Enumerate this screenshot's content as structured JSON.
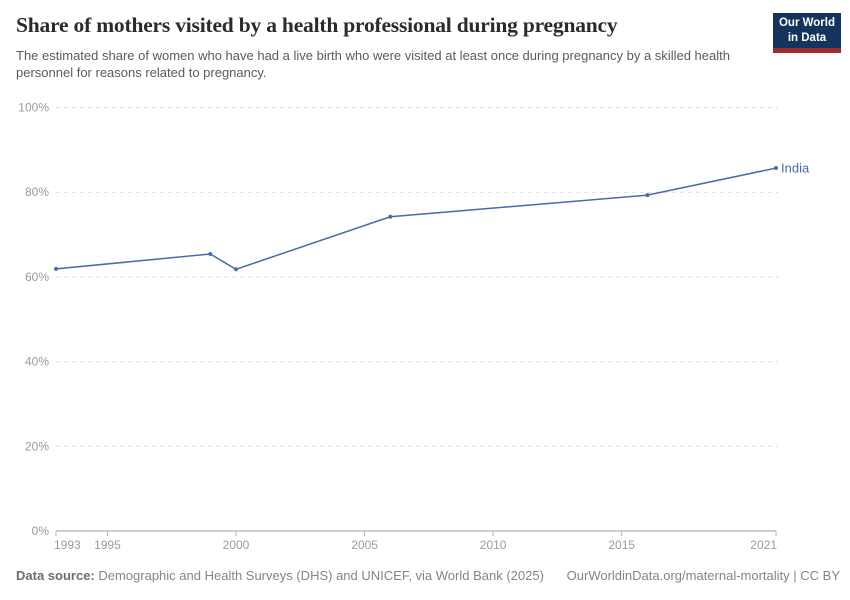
{
  "header": {
    "title": "Share of mothers visited by a health professional during pregnancy",
    "subtitle": "The estimated share of women who have had a live birth who were visited at least once during pregnancy by a skilled health personnel for reasons related to pregnancy.",
    "logo": {
      "line1": "Our World",
      "line2": "in Data",
      "bg_color": "#14345e",
      "stripe_color": "#9e2b2e"
    }
  },
  "chart_data": {
    "type": "line",
    "title": "Share of mothers visited by a health professional during pregnancy",
    "xlabel": "",
    "ylabel": "",
    "xlim": [
      1993,
      2021
    ],
    "ylim": [
      0,
      100
    ],
    "x_ticks": [
      1993,
      1995,
      2000,
      2005,
      2010,
      2015,
      2021
    ],
    "y_ticks": [
      0,
      20,
      40,
      60,
      80,
      100
    ],
    "y_tick_suffix": "%",
    "grid": "dashed horizontal gridlines, solid baseline at 0%",
    "legend_position": "end-of-line label",
    "series": [
      {
        "name": "India",
        "color": "#4a69a8",
        "points": [
          [
            1993,
            61.9
          ],
          [
            1999,
            65.4
          ],
          [
            2000,
            61.8
          ],
          [
            2006,
            74.2
          ],
          [
            2016,
            79.3
          ],
          [
            2021,
            85.7
          ]
        ]
      }
    ]
  },
  "footer": {
    "datasource_label": "Data source:",
    "datasource_text": " Demographic and Health Surveys (DHS) and UNICEF, via World Bank (2025)",
    "link_text": "OurWorldinData.org/maternal-mortality | CC BY"
  },
  "colors": {
    "title_text": "#2b2b2b",
    "subtitle_text": "#5b5b5b",
    "axis_label_text": "#9b9b9b",
    "gridline": "#dcdcdc",
    "axis_line": "#a1a1a1",
    "footer_text": "#858585",
    "series_line": "#4a69a8"
  }
}
